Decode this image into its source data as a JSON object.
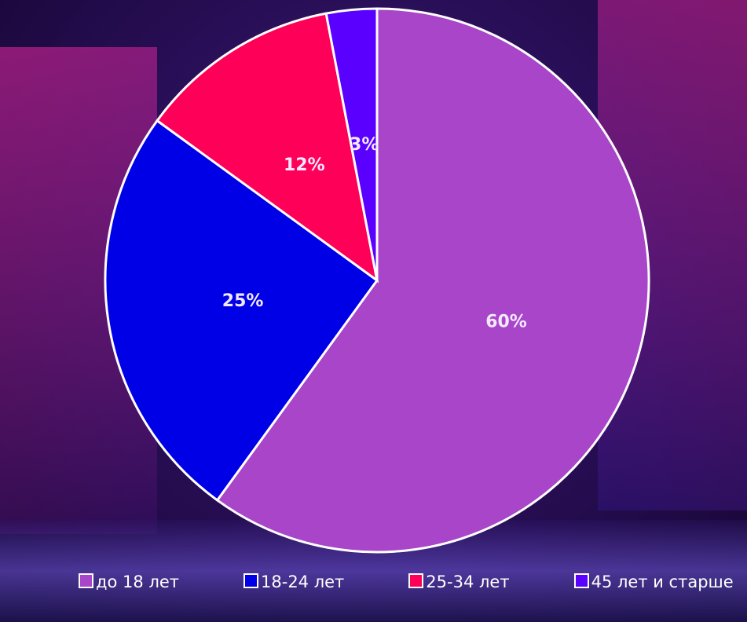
{
  "chart_data": {
    "type": "pie",
    "categories": [
      "до 18 лет",
      "18-24 лет",
      "25-34 лет",
      "45 лет и старше"
    ],
    "values": [
      60,
      25,
      12,
      3
    ],
    "value_labels": [
      "60%",
      "25%",
      "12%",
      "3%"
    ],
    "colors": [
      "#a845c8",
      "#0000e6",
      "#ff0058",
      "#5a00ff"
    ]
  }
}
